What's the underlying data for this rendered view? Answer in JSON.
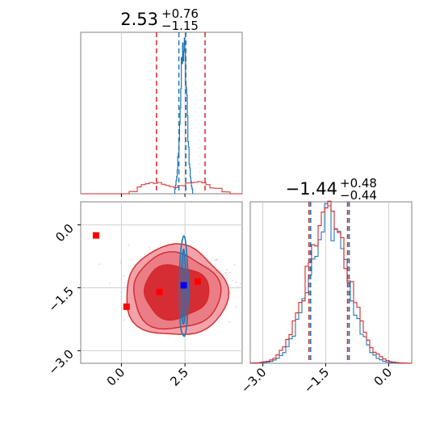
{
  "chart_data": {
    "type": "corner",
    "colors": {
      "samples_a": "#1f77b4",
      "samples_b": "#d62728",
      "marker_true": "#0000ff",
      "marker_points": "#ff0000",
      "grid": "#cfcfcf"
    },
    "params": [
      {
        "title_value": "2.53",
        "title_plus": "+0.76",
        "title_minus": "−1.15",
        "range": [
          -1.6,
          4.75
        ],
        "ticks": [
          0.0,
          2.5
        ],
        "tick_labels": [
          "0.0",
          "2.5"
        ]
      },
      {
        "title_value": "−1.44",
        "title_plus": "+0.48",
        "title_minus": "−0.44",
        "range": [
          -3.3,
          0.55
        ],
        "ticks": [
          -3.0,
          -1.5,
          0.0
        ],
        "tick_labels": [
          "−3.0",
          "−1.5",
          "0.0"
        ]
      }
    ],
    "hist_p1": {
      "series_a": {
        "name": "",
        "color": "#1f77b4",
        "center": 2.45,
        "width": 0.13,
        "quantiles": [
          2.26,
          2.53
        ]
      },
      "series_b": {
        "name": "",
        "color": "#d62728",
        "peaks": [
          [
            1.3,
            0.04
          ],
          [
            2.5,
            0.05
          ]
        ],
        "range": [
          0.3,
          4.2
        ],
        "quantiles": [
          1.38,
          2.53,
          3.29
        ]
      }
    },
    "hist_p2": {
      "series_a": {
        "color": "#1f77b4",
        "center": -1.44,
        "sigma": 0.46,
        "quantiles": [
          -1.88,
          -0.96
        ]
      },
      "series_b": {
        "color": "#d62728",
        "center": -1.44,
        "sigma": 0.5,
        "quantiles": [
          -1.88,
          -0.96
        ]
      }
    },
    "scatter_2d": {
      "red_contours": {
        "center": [
          2.3,
          -1.5
        ],
        "levels": [
          0.39,
          0.86,
          0.99
        ]
      },
      "blue_contours": {
        "center": [
          2.45,
          -1.5
        ],
        "levels": [
          0.39,
          0.86
        ]
      },
      "true_point": [
        2.45,
        -1.44
      ],
      "red_points": [
        [
          -1.0,
          -0.25
        ],
        [
          0.2,
          -1.95
        ],
        [
          1.5,
          -1.6
        ],
        [
          3.0,
          -1.35
        ]
      ]
    }
  }
}
